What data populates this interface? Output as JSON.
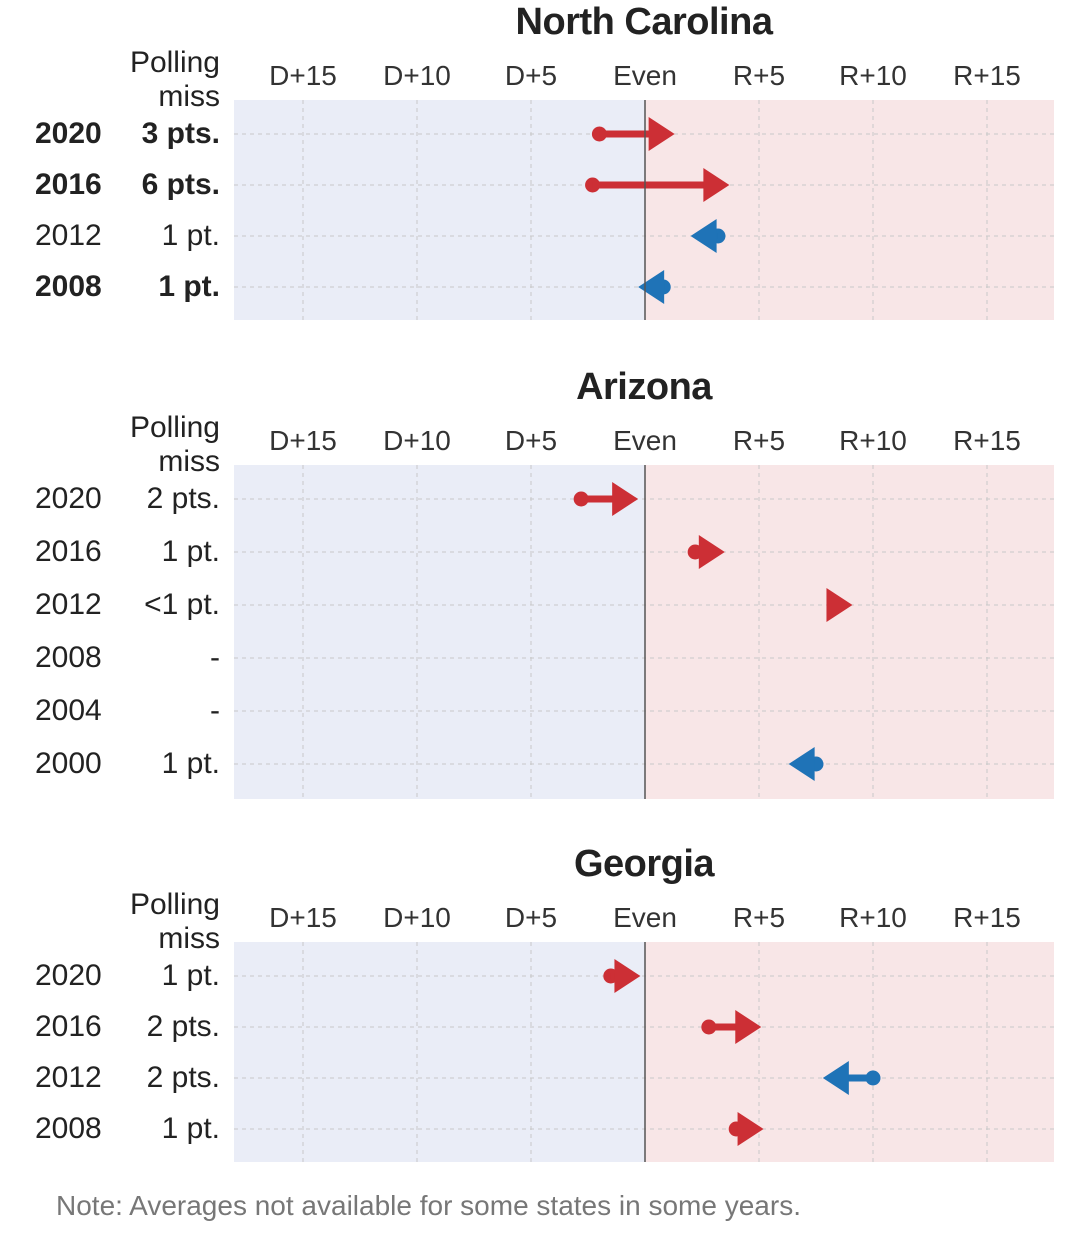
{
  "colors": {
    "dem_bg": "#eaedf7",
    "rep_bg": "#f8e6e7",
    "rep_arrow": "#cc2f35",
    "dem_arrow": "#1f73b7",
    "grid": "#c8c8c8",
    "even_line": "#555555"
  },
  "chart_data": [
    {
      "type": "arrow",
      "title": "North Carolina",
      "miss_header": "Polling\nmiss",
      "x_ticks": [
        {
          "value": -15,
          "label": "D+15"
        },
        {
          "value": -10,
          "label": "D+10"
        },
        {
          "value": -5,
          "label": "D+5"
        },
        {
          "value": 0,
          "label": "Even"
        },
        {
          "value": 5,
          "label": "R+5"
        },
        {
          "value": 10,
          "label": "R+10"
        },
        {
          "value": 15,
          "label": "R+15"
        }
      ],
      "xlim": [
        -18,
        18
      ],
      "rows": [
        {
          "year": "2020",
          "miss": "3 pts.",
          "bold": true,
          "poll": -2,
          "result": 1.3,
          "color": "red"
        },
        {
          "year": "2016",
          "miss": "6 pts.",
          "bold": true,
          "poll": -2.3,
          "result": 3.7,
          "color": "red"
        },
        {
          "year": "2012",
          "miss": "1 pt.",
          "bold": false,
          "poll": 3.2,
          "result": 2.0,
          "color": "blue"
        },
        {
          "year": "2008",
          "miss": "1 pt.",
          "bold": true,
          "poll": 0.8,
          "result": -0.3,
          "color": "blue"
        }
      ]
    },
    {
      "type": "arrow",
      "title": "Arizona",
      "miss_header": "Polling\nmiss",
      "x_ticks": [
        {
          "value": -15,
          "label": "D+15"
        },
        {
          "value": -10,
          "label": "D+10"
        },
        {
          "value": -5,
          "label": "D+5"
        },
        {
          "value": 0,
          "label": "Even"
        },
        {
          "value": 5,
          "label": "R+5"
        },
        {
          "value": 10,
          "label": "R+10"
        },
        {
          "value": 15,
          "label": "R+15"
        }
      ],
      "xlim": [
        -18,
        18
      ],
      "rows": [
        {
          "year": "2020",
          "miss": "2 pts.",
          "bold": false,
          "poll": -2.8,
          "result": -0.3,
          "color": "red"
        },
        {
          "year": "2016",
          "miss": "1 pt.",
          "bold": false,
          "poll": 2.2,
          "result": 3.5,
          "color": "red"
        },
        {
          "year": "2012",
          "miss": "<1 pt.",
          "bold": false,
          "poll": 8.4,
          "result": 9.1,
          "color": "red"
        },
        {
          "year": "2008",
          "miss": "-",
          "bold": false,
          "poll": null,
          "result": null,
          "color": null
        },
        {
          "year": "2004",
          "miss": "-",
          "bold": false,
          "poll": null,
          "result": null,
          "color": null
        },
        {
          "year": "2000",
          "miss": "1 pt.",
          "bold": false,
          "poll": 7.5,
          "result": 6.3,
          "color": "blue"
        }
      ]
    },
    {
      "type": "arrow",
      "title": "Georgia",
      "miss_header": "Polling\nmiss",
      "x_ticks": [
        {
          "value": -15,
          "label": "D+15"
        },
        {
          "value": -10,
          "label": "D+10"
        },
        {
          "value": -5,
          "label": "D+5"
        },
        {
          "value": 0,
          "label": "Even"
        },
        {
          "value": 5,
          "label": "R+5"
        },
        {
          "value": 10,
          "label": "R+10"
        },
        {
          "value": 15,
          "label": "R+15"
        }
      ],
      "xlim": [
        -18,
        18
      ],
      "rows": [
        {
          "year": "2020",
          "miss": "1 pt.",
          "bold": false,
          "poll": -1.5,
          "result": -0.2,
          "color": "red"
        },
        {
          "year": "2016",
          "miss": "2 pts.",
          "bold": false,
          "poll": 2.8,
          "result": 5.1,
          "color": "red"
        },
        {
          "year": "2012",
          "miss": "2 pts.",
          "bold": false,
          "poll": 10.0,
          "result": 7.8,
          "color": "blue"
        },
        {
          "year": "2008",
          "miss": "1 pt.",
          "bold": false,
          "poll": 4.0,
          "result": 5.2,
          "color": "red"
        }
      ]
    }
  ],
  "note": "Note: Averages not available for some states in some years."
}
